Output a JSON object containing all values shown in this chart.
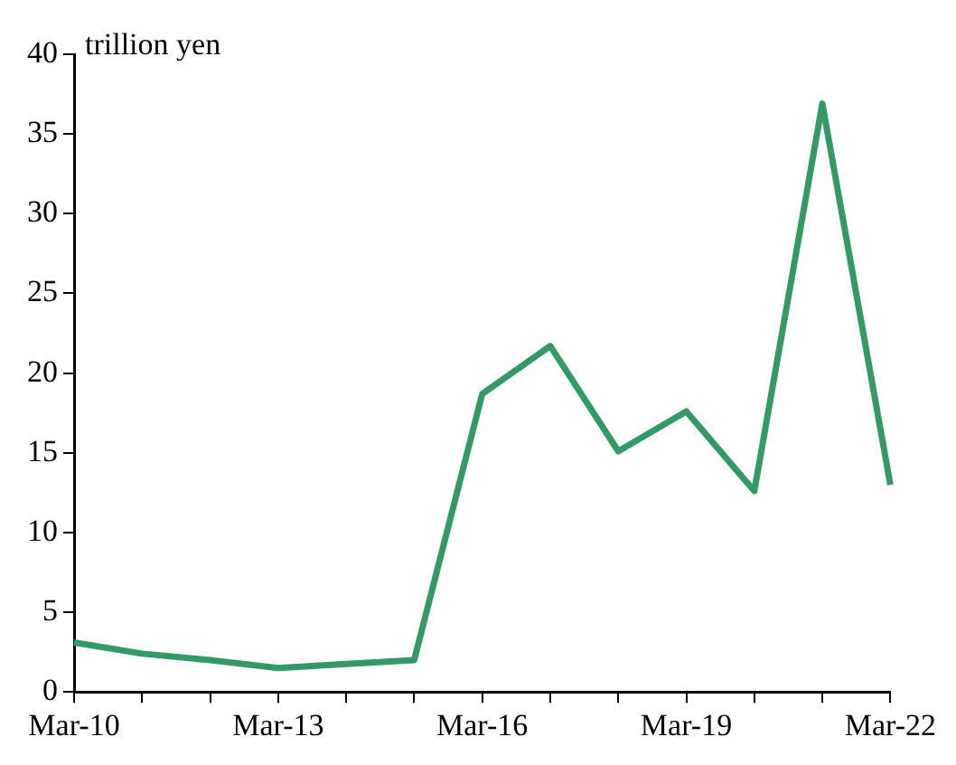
{
  "chart_data": {
    "type": "line",
    "ylabel": "trillion yen",
    "categories": [
      "Mar-10",
      null,
      null,
      "Mar-13",
      null,
      null,
      "Mar-16",
      null,
      null,
      "Mar-19",
      null,
      null,
      "Mar-22"
    ],
    "series": [
      {
        "color": "#339966",
        "values": [
          3.1,
          2.4,
          2.0,
          1.5,
          1.75,
          2.0,
          18.7,
          21.7,
          15.1,
          17.6,
          12.6,
          36.9,
          13.0
        ]
      }
    ],
    "ylim": [
      0,
      40
    ],
    "yticks": [
      0,
      5,
      10,
      15,
      20,
      25,
      30,
      35,
      40
    ],
    "grid": false,
    "legend": false,
    "marker": "none",
    "line_style": "solid"
  }
}
